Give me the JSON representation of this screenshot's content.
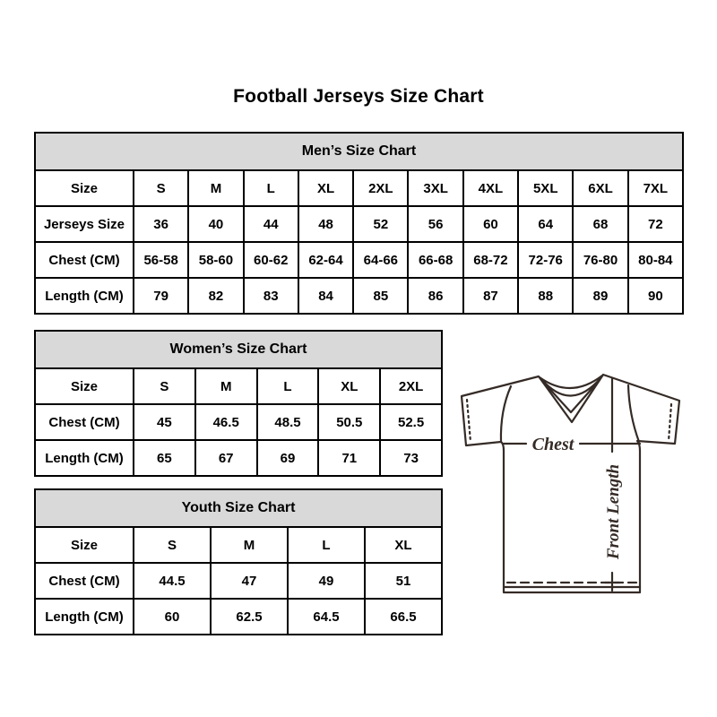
{
  "page_title": "Football Jerseys Size Chart",
  "colors": {
    "table_header_bg": "#d9d9d9",
    "table_border": "#000000",
    "diagram_line": "#352b26",
    "background": "#ffffff"
  },
  "tables": [
    {
      "key": "mens",
      "title": "Men’s Size Chart",
      "rows": [
        {
          "label": "Size",
          "values": [
            "S",
            "M",
            "L",
            "XL",
            "2XL",
            "3XL",
            "4XL",
            "5XL",
            "6XL",
            "7XL"
          ]
        },
        {
          "label": "Jerseys Size",
          "values": [
            "36",
            "40",
            "44",
            "48",
            "52",
            "56",
            "60",
            "64",
            "68",
            "72"
          ]
        },
        {
          "label": "Chest (CM)",
          "values": [
            "56-58",
            "58-60",
            "60-62",
            "62-64",
            "64-66",
            "66-68",
            "68-72",
            "72-76",
            "76-80",
            "80-84"
          ]
        },
        {
          "label": "Length (CM)",
          "values": [
            "79",
            "82",
            "83",
            "84",
            "85",
            "86",
            "87",
            "88",
            "89",
            "90"
          ]
        }
      ]
    },
    {
      "key": "womens",
      "title": "Women’s Size Chart",
      "rows": [
        {
          "label": "Size",
          "values": [
            "S",
            "M",
            "L",
            "XL",
            "2XL"
          ]
        },
        {
          "label": "Chest (CM)",
          "values": [
            "45",
            "46.5",
            "48.5",
            "50.5",
            "52.5"
          ]
        },
        {
          "label": "Length (CM)",
          "values": [
            "65",
            "67",
            "69",
            "71",
            "73"
          ]
        }
      ]
    },
    {
      "key": "youth",
      "title": "Youth Size Chart",
      "rows": [
        {
          "label": "Size",
          "values": [
            "S",
            "M",
            "L",
            "XL"
          ]
        },
        {
          "label": "Chest (CM)",
          "values": [
            "44.5",
            "47",
            "49",
            "51"
          ]
        },
        {
          "label": "Length (CM)",
          "values": [
            "60",
            "62.5",
            "64.5",
            "66.5"
          ]
        }
      ]
    }
  ],
  "diagram": {
    "chest_label": "Chest",
    "front_length_label": "Front Length"
  }
}
